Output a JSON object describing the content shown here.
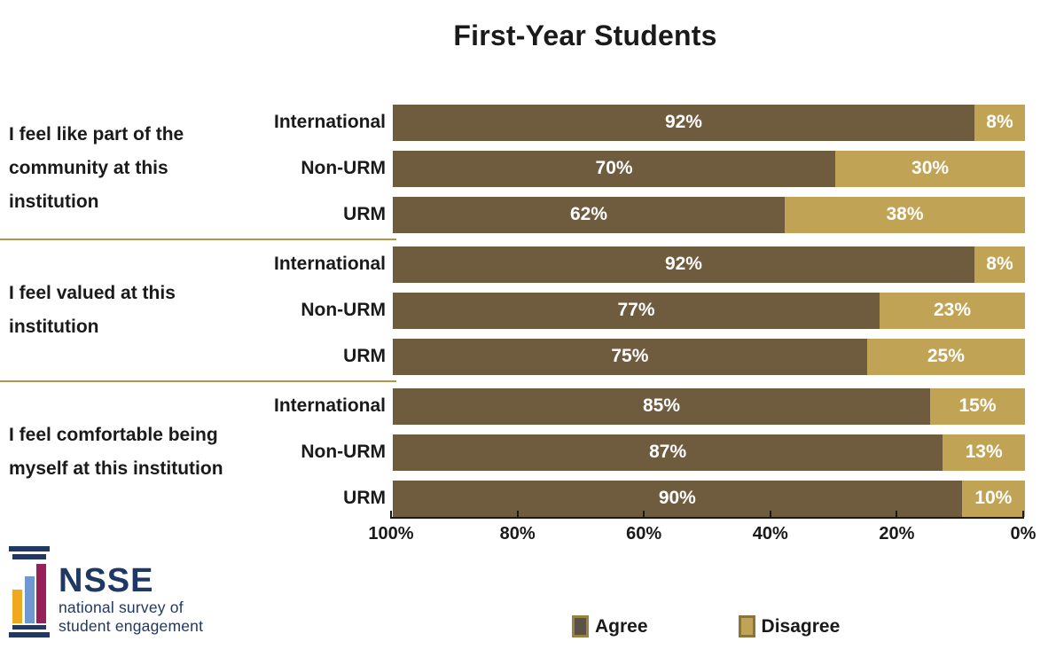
{
  "title": "First-Year Students",
  "chart_data": {
    "type": "bar",
    "subtype": "horizontal-stacked",
    "title": "First-Year Students",
    "x_axis": {
      "direction": "reversed",
      "range": [
        100,
        0
      ],
      "tick_labels": [
        "100%",
        "80%",
        "60%",
        "40%",
        "20%",
        "0%"
      ]
    },
    "grid": "off",
    "groups": [
      {
        "question": "I feel like part of the community at this institution",
        "rows": [
          {
            "label": "International",
            "agree": 92,
            "disagree": 8
          },
          {
            "label": "Non-URM",
            "agree": 70,
            "disagree": 30
          },
          {
            "label": "URM",
            "agree": 62,
            "disagree": 38
          }
        ]
      },
      {
        "question": "I feel valued at this institution",
        "rows": [
          {
            "label": "International",
            "agree": 92,
            "disagree": 8
          },
          {
            "label": "Non-URM",
            "agree": 77,
            "disagree": 23
          },
          {
            "label": "URM",
            "agree": 75,
            "disagree": 25
          }
        ]
      },
      {
        "question": "I feel comfortable being myself at this institution",
        "rows": [
          {
            "label": "International",
            "agree": 85,
            "disagree": 15
          },
          {
            "label": "Non-URM",
            "agree": 87,
            "disagree": 13
          },
          {
            "label": "URM",
            "agree": 90,
            "disagree": 10
          }
        ]
      }
    ],
    "legend": {
      "position": "bottom",
      "items": [
        {
          "label": "Agree",
          "series_color": "#6F5B3D",
          "swatch_fill": "#5A5148",
          "swatch_border": "#9A8340"
        },
        {
          "label": "Disagree",
          "series_color": "#C1A355",
          "swatch_fill": "#BFA457",
          "swatch_border": "#8A7439"
        }
      ]
    }
  },
  "colors": {
    "agree_bar": "#6F5B3D",
    "disagree_bar": "#C1A355",
    "group_divider": "#AD9850",
    "axis_line": "#1a1a1a",
    "bar_value_text": "#ffffff",
    "logo_navy": "#1F3864",
    "logo_gold": "#F0A81E",
    "logo_blue": "#7098D0",
    "logo_maroon": "#97205A"
  },
  "logo": {
    "acronym": "NSSE",
    "subtitle_line1": "national survey of",
    "subtitle_line2": "student engagement"
  }
}
